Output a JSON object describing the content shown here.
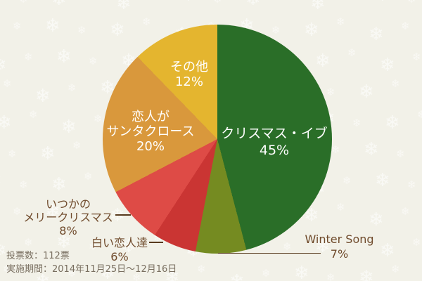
{
  "chart_data": {
    "type": "pie",
    "title": "",
    "start_angle_deg": 0,
    "direction": "clockwise",
    "slices": [
      {
        "label": "クリスマス・イブ",
        "value": 45,
        "percent_label": "45%",
        "color": "#2a6e28",
        "label_position": "inside"
      },
      {
        "label": "Winter Song",
        "value": 7,
        "percent_label": "7%",
        "color": "#758b21",
        "label_position": "outside"
      },
      {
        "label": "白い恋人達",
        "value": 6,
        "percent_label": "6%",
        "color": "#ca3533",
        "label_position": "outside"
      },
      {
        "label": "いつかのメリークリスマス",
        "label_lines": [
          "いつかの",
          "メリークリスマス"
        ],
        "value": 8,
        "percent_label": "8%",
        "color": "#de4b46",
        "label_position": "outside"
      },
      {
        "label": "恋人がサンタクロース",
        "label_lines": [
          "恋人が",
          "サンタクロース"
        ],
        "value": 20,
        "percent_label": "20%",
        "color": "#d9983c",
        "label_position": "inside"
      },
      {
        "label": "その他",
        "value": 12,
        "percent_label": "12%",
        "color": "#e4b52f",
        "label_position": "inside"
      }
    ]
  },
  "footer": {
    "votes": "投票数：112票",
    "period": "実施期間：2014年11月25日～12月16日"
  },
  "decor": {
    "snowflake_glyph": "❄"
  },
  "colors": {
    "background": "#f2f1e8",
    "inside_label": "#ffffff",
    "outside_label": "#6f4a2b",
    "leader_line": "#573a1d",
    "footer_text": "#786e5f",
    "snowflake": "#ffffff"
  }
}
